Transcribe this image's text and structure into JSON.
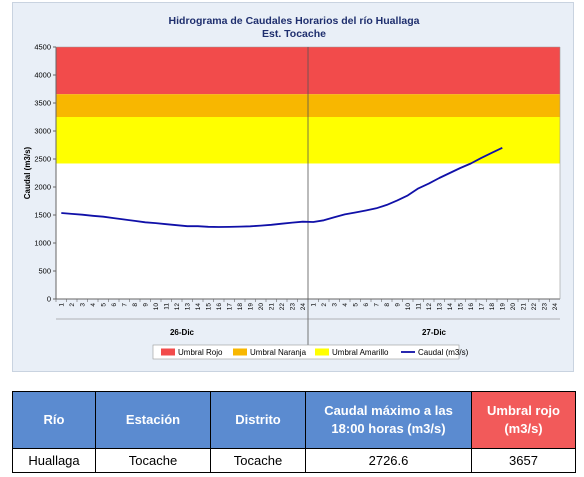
{
  "chart_data": {
    "type": "line",
    "title": "Hidrograma de Caudales Horarios del río Huallaga",
    "subtitle": "Est. Tocache",
    "ylabel": "Caudal  (m3/s)",
    "xlabel": "",
    "ylim": [
      0,
      4500
    ],
    "yticks": [
      0,
      500,
      1000,
      1500,
      2000,
      2500,
      3000,
      3500,
      4000,
      4500
    ],
    "x_tick_labels": [
      "1",
      "2",
      "3",
      "4",
      "5",
      "6",
      "7",
      "8",
      "9",
      "10",
      "11",
      "12",
      "13",
      "14",
      "15",
      "16",
      "17",
      "18",
      "19",
      "20",
      "21",
      "22",
      "23",
      "24",
      "1",
      "2",
      "3",
      "4",
      "5",
      "6",
      "7",
      "8",
      "9",
      "10",
      "11",
      "12",
      "13",
      "14",
      "15",
      "16",
      "17",
      "18",
      "19",
      "20",
      "21",
      "22",
      "23",
      "24"
    ],
    "day_labels": [
      "26-Dic",
      "27-Dic"
    ],
    "thresholds": [
      {
        "name": "Umbral Rojo",
        "from": 3657,
        "to": 4500,
        "color": "#f24b4b"
      },
      {
        "name": "Umbral Naranja",
        "from": 3250,
        "to": 3657,
        "color": "#f8b700"
      },
      {
        "name": "Umbral Amarillo",
        "from": 2420,
        "to": 3250,
        "color": "#ffff00"
      }
    ],
    "series": [
      {
        "name": "Caudal (m3/s)",
        "color": "#1010a8",
        "values": [
          1535,
          1520,
          1505,
          1485,
          1470,
          1445,
          1420,
          1395,
          1370,
          1355,
          1335,
          1318,
          1300,
          1300,
          1290,
          1285,
          1288,
          1292,
          1298,
          1310,
          1325,
          1345,
          1365,
          1380,
          1375,
          1405,
          1460,
          1510,
          1545,
          1580,
          1620,
          1680,
          1760,
          1850,
          1975,
          2060,
          2160,
          2250,
          2340,
          2420,
          2520,
          2610,
          2700
        ]
      }
    ],
    "legend_position": "bottom"
  },
  "legend": [
    {
      "label": "Umbral Rojo",
      "color": "#f24b4b",
      "kind": "box"
    },
    {
      "label": "Umbral Naranja",
      "color": "#f8b700",
      "kind": "box"
    },
    {
      "label": "Umbral Amarillo",
      "color": "#ffff00",
      "kind": "box"
    },
    {
      "label": "Caudal (m3/s)",
      "color": "#1010a8",
      "kind": "line"
    }
  ],
  "table": {
    "headers": [
      "Río",
      "Estación",
      "Distrito",
      "Caudal máximo a las 18:00 horas (m3/s)",
      "Umbral rojo (m3/s)"
    ],
    "row": [
      "Huallaga",
      "Tocache",
      "Tocache",
      "2726.6",
      "3657"
    ]
  }
}
